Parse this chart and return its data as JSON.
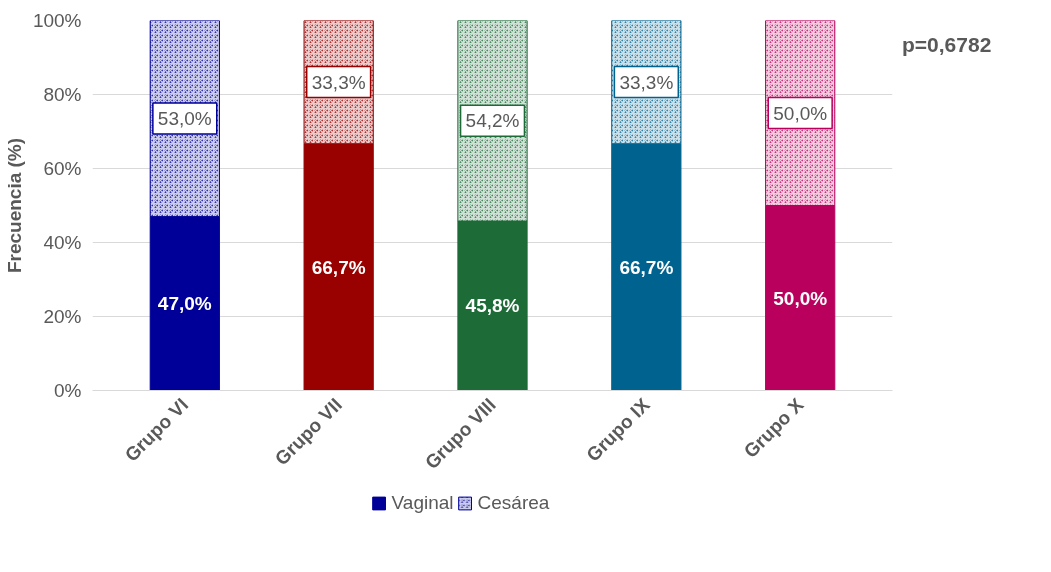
{
  "chart_data": {
    "type": "bar",
    "stacked": true,
    "ylabel": "Frecuencia (%)",
    "categories": [
      "Grupo VI",
      "Grupo VII",
      "Grupo VIII",
      "Grupo IX",
      "Grupo X"
    ],
    "series": [
      {
        "name": "Vaginal",
        "color": "#000099",
        "colors": [
          "#000099",
          "#990000",
          "#1d6b37",
          "#00638f",
          "#b8005c"
        ],
        "values": [
          47.0,
          66.7,
          45.8,
          66.7,
          50.0
        ],
        "value_labels": [
          "47,0%",
          "66,7%",
          "45,8%",
          "66,7%",
          "50,0%"
        ]
      },
      {
        "name": "Cesárea",
        "color": "#000099",
        "colors": [
          "#000099",
          "#990000",
          "#1d6b37",
          "#00638f",
          "#b8005c"
        ],
        "values": [
          53.0,
          33.3,
          54.2,
          33.3,
          50.0
        ],
        "value_labels": [
          "53,0%",
          "33,3%",
          "54,2%",
          "33,3%",
          "50,0%"
        ]
      }
    ],
    "ylim": [
      0,
      100
    ],
    "yticks": [
      {
        "value": 0,
        "label": "0%"
      },
      {
        "value": 20,
        "label": "20%"
      },
      {
        "value": 40,
        "label": "40%"
      },
      {
        "value": 60,
        "label": "60%"
      },
      {
        "value": 80,
        "label": "80%"
      },
      {
        "value": 100,
        "label": "100%"
      }
    ],
    "grid": "y",
    "legend": "bottom",
    "annotations": [
      "p=0,6782"
    ]
  }
}
